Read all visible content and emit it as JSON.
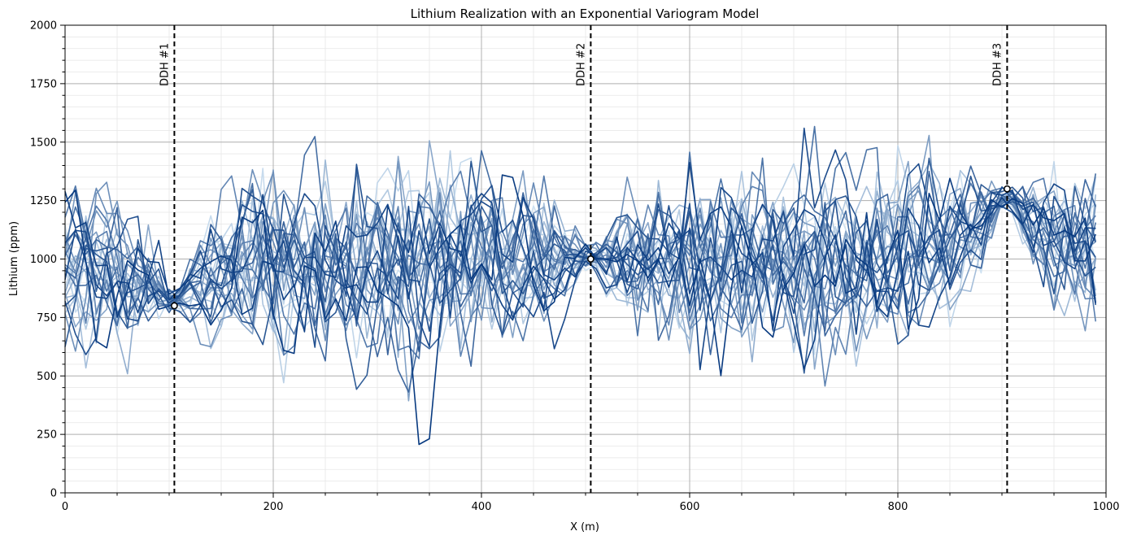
{
  "chart_data": {
    "type": "line",
    "title": "Lithium Realization with an Exponential Variogram Model",
    "xlabel": "X (m)",
    "ylabel": "Lithium (ppm)",
    "xlim": [
      0,
      1000
    ],
    "ylim": [
      0,
      2000
    ],
    "x_ticks": [
      0,
      200,
      400,
      600,
      800,
      1000
    ],
    "x_tick_labels": [
      "0",
      "200",
      "400",
      "600",
      "800",
      "1000"
    ],
    "y_ticks": [
      0,
      250,
      500,
      750,
      1000,
      1250,
      1500,
      1750,
      2000
    ],
    "y_tick_labels": [
      "0",
      "250",
      "500",
      "750",
      "1000",
      "1250",
      "1500",
      "1750",
      "2000"
    ],
    "grid": true,
    "colormap": "Blues",
    "n_realizations": 30,
    "step_m": 10,
    "x_start_m": 0,
    "x_end_m": 990,
    "value_mean_ppm": 1000,
    "value_spread_ppm": 190,
    "drillholes": [
      {
        "label": "DDH #1",
        "x": 105,
        "value": 800
      },
      {
        "label": "DDH #2",
        "x": 505,
        "value": 1000
      },
      {
        "label": "DDH #3",
        "x": 905,
        "value": 1300
      }
    ]
  }
}
